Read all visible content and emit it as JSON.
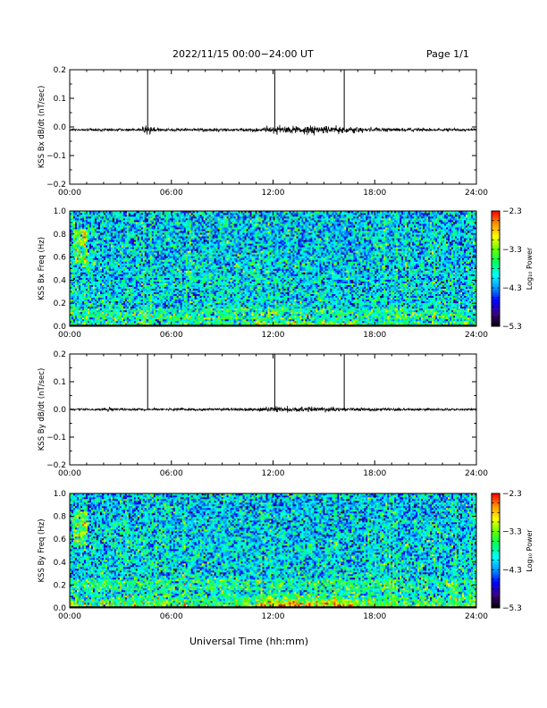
{
  "header": {
    "title": "2022/11/15  00:00−24:00 UT",
    "page_label": "Page 1/1"
  },
  "xlabel": "Universal Time (hh:mm)",
  "chart_data": [
    {
      "type": "line",
      "ylabel": "KSS Bx dB/dt (nT/sec)",
      "xlim": [
        0,
        24
      ],
      "ylim": [
        -0.2,
        0.2
      ],
      "yticks": [
        "0.2",
        "0.1",
        "0.0",
        "−0.1",
        "−0.2"
      ],
      "ytick_values": [
        0.2,
        0.1,
        0.0,
        -0.1,
        -0.2
      ],
      "xticks": [
        "00:00",
        "06:00",
        "12:00",
        "18:00",
        "24:00"
      ],
      "xtick_values": [
        0,
        6,
        12,
        18,
        24
      ],
      "baseline": -0.01,
      "noise_envelope": [
        [
          0,
          0.003
        ],
        [
          4,
          0.004
        ],
        [
          4.6,
          0.012
        ],
        [
          5.2,
          0.004
        ],
        [
          10.5,
          0.005
        ],
        [
          12,
          0.01
        ],
        [
          15,
          0.013
        ],
        [
          17,
          0.008
        ],
        [
          19,
          0.005
        ],
        [
          22,
          0.004
        ],
        [
          24,
          0.004
        ]
      ],
      "spikes": [
        4.6,
        12.1,
        16.2
      ],
      "grid": false,
      "color": "#000000"
    },
    {
      "type": "heatmap",
      "ylabel": "KSS Bx Freq (Hz)",
      "xlim": [
        0,
        24
      ],
      "ylim": [
        0.0,
        1.0
      ],
      "yticks": [
        "1.0",
        "0.8",
        "0.6",
        "0.4",
        "0.2",
        "0.0"
      ],
      "ytick_values": [
        1.0,
        0.8,
        0.6,
        0.4,
        0.2,
        0.0
      ],
      "xticks": [
        "00:00",
        "06:00",
        "12:00",
        "18:00",
        "24:00"
      ],
      "xtick_values": [
        0,
        6,
        12,
        18,
        24
      ],
      "colorbar": {
        "label": "Log₁₀ Power",
        "range": [
          -5.3,
          -2.3
        ],
        "ticks": [
          "−2.3",
          "−3.3",
          "−4.3",
          "−5.3"
        ],
        "tick_values": [
          -2.3,
          -3.3,
          -4.3,
          -5.3
        ],
        "colors": [
          "#000000",
          "#3c0082",
          "#0000ff",
          "#0096ff",
          "#00ffff",
          "#00ff64",
          "#64ff00",
          "#ffff00",
          "#ff9600",
          "#ff0000"
        ]
      },
      "features": {
        "background_log_power": -4.0,
        "low_freq_band_below_hz": 0.06,
        "low_freq_peak_hours": [
          11,
          17
        ],
        "low_freq_peak_log_power": -2.8,
        "pc1_patch_hours": [
          0.2,
          1.0
        ],
        "pc1_patch_hz": [
          0.55,
          0.85
        ],
        "pc1_patch_log_power": -3.3
      }
    },
    {
      "type": "line",
      "ylabel": "KSS By dB/dt (nT/sec)",
      "xlim": [
        0,
        24
      ],
      "ylim": [
        -0.2,
        0.2
      ],
      "yticks": [
        "0.2",
        "0.1",
        "0.0",
        "−0.1",
        "−0.2"
      ],
      "ytick_values": [
        0.2,
        0.1,
        0.0,
        -0.1,
        -0.2
      ],
      "xticks": [
        "00:00",
        "06:00",
        "12:00",
        "18:00",
        "24:00"
      ],
      "xtick_values": [
        0,
        6,
        12,
        18,
        24
      ],
      "baseline": 0.0,
      "noise_envelope": [
        [
          0,
          0.003
        ],
        [
          2.2,
          0.004
        ],
        [
          2.4,
          0.01
        ],
        [
          2.6,
          0.003
        ],
        [
          10.5,
          0.004
        ],
        [
          12,
          0.008
        ],
        [
          15,
          0.007
        ],
        [
          17,
          0.005
        ],
        [
          24,
          0.003
        ]
      ],
      "spikes": [
        4.6,
        12.1,
        16.2
      ],
      "grid": false,
      "color": "#000000"
    },
    {
      "type": "heatmap",
      "ylabel": "KSS By Freq (Hz)",
      "xlim": [
        0,
        24
      ],
      "ylim": [
        0.0,
        1.0
      ],
      "yticks": [
        "1.0",
        "0.8",
        "0.6",
        "0.4",
        "0.2",
        "0.0"
      ],
      "ytick_values": [
        1.0,
        0.8,
        0.6,
        0.4,
        0.2,
        0.0
      ],
      "xticks": [
        "00:00",
        "06:00",
        "12:00",
        "18:00",
        "24:00"
      ],
      "xtick_values": [
        0,
        6,
        12,
        18,
        24
      ],
      "colorbar": {
        "label": "Log₁₀ Power",
        "range": [
          -5.3,
          -2.3
        ],
        "ticks": [
          "−2.3",
          "−3.3",
          "−4.3",
          "−5.3"
        ],
        "tick_values": [
          -2.3,
          -3.3,
          -4.3,
          -5.3
        ],
        "colors": [
          "#000000",
          "#3c0082",
          "#0000ff",
          "#0096ff",
          "#00ffff",
          "#00ff64",
          "#64ff00",
          "#ffff00",
          "#ff9600",
          "#ff0000"
        ]
      },
      "features": {
        "background_log_power": -4.0,
        "low_freq_band_below_hz": 0.15,
        "low_freq_peak_hours": [
          11,
          17
        ],
        "low_freq_peak_log_power": -2.7,
        "pc1_patch_hours": [
          0.2,
          1.0
        ],
        "pc1_patch_hz": [
          0.55,
          0.85
        ],
        "pc1_patch_log_power": -3.3
      }
    }
  ]
}
